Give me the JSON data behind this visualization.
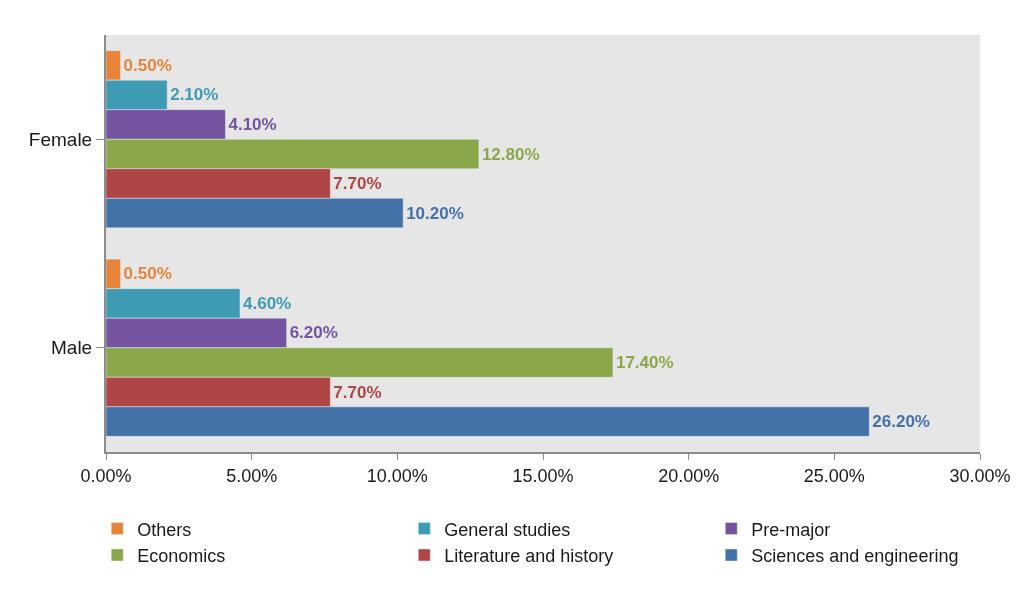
{
  "chart_data": {
    "type": "bar",
    "orientation": "horizontal",
    "categories": [
      "Female",
      "Male"
    ],
    "series": [
      {
        "name": "Others",
        "color": "#e6853a",
        "values": [
          0.5,
          0.5
        ],
        "value_labels": [
          "0.50%",
          "0.50%"
        ]
      },
      {
        "name": "General studies",
        "color": "#3f9bb3",
        "values": [
          2.1,
          4.6
        ],
        "value_labels": [
          "2.10%",
          "4.60%"
        ]
      },
      {
        "name": "Pre-major",
        "color": "#7453a0",
        "values": [
          4.1,
          6.2
        ],
        "value_labels": [
          "4.10%",
          "6.20%"
        ]
      },
      {
        "name": "Economics",
        "color": "#8aa84a",
        "values": [
          12.8,
          17.4
        ],
        "value_labels": [
          "12.80%",
          "17.40%"
        ]
      },
      {
        "name": "Literature and history",
        "color": "#b04545",
        "values": [
          7.7,
          7.7
        ],
        "value_labels": [
          "7.70%",
          "7.70%"
        ]
      },
      {
        "name": "Sciences and engineering",
        "color": "#4472a8",
        "values": [
          10.2,
          26.2
        ],
        "value_labels": [
          "10.20%",
          "26.20%"
        ]
      }
    ],
    "xlim": [
      0,
      30
    ],
    "xticks": [
      {
        "value": 0,
        "label": "0.00%"
      },
      {
        "value": 5,
        "label": "5.00%"
      },
      {
        "value": 10,
        "label": "10.00%"
      },
      {
        "value": 15,
        "label": "15.00%"
      },
      {
        "value": 20,
        "label": "20.00%"
      },
      {
        "value": 25,
        "label": "25.00%"
      },
      {
        "value": 30,
        "label": "30.00%"
      }
    ],
    "legend": "bottom",
    "grid": false
  }
}
